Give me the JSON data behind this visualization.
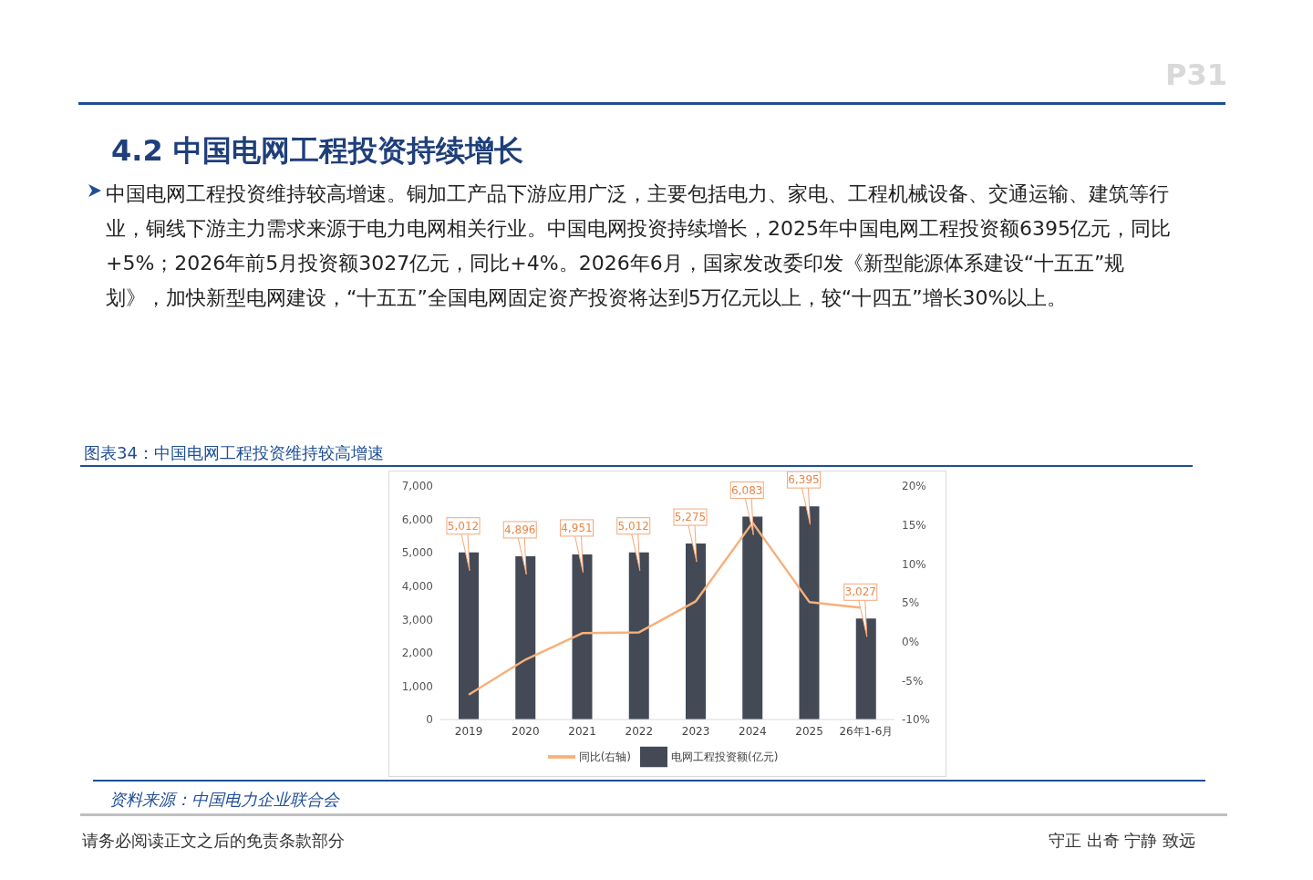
{
  "chart_data": {
    "type": "bar",
    "title": "4.2 中国电网工程投资持续增长",
    "subtitle": "中国电网工程投资维持较高增速。铜加工产品下游应用广泛，主要包括电力、家电、工程机械设备、交通运输、建筑等行业，铜线下游主力需求来源于电力电网相关行业。中国电网投资持续增长，2025年中国电网工程投资额6395亿元，同比+5%；2026年前5月投资额3027亿元，同比+4%。2026年6月，国家发改委印发《新型能源体系建设“十五五”规划》，加快新型电网建设，“十五五”全国电网固定资产投资将达到5万亿元以上，较“十四五”增长30%以上。",
    "annotations": [
      "P31",
      "图表34：中国电网工程投资维持较高增速",
      "资料来源：中国电力企业联合会",
      "请务必阅读正文之后的免责条款部分",
      "守正 出奇 宁静 致远"
    ],
    "categories": [
      "2019",
      "2020",
      "2021",
      "2022",
      "2023",
      "2024",
      "2025",
      "26年1-6月"
    ],
    "series": [
      {
        "name": "电网工程投资额(亿元)",
        "color": "#434955",
        "values": [
          5012,
          4896,
          4951,
          5012,
          5275,
          6083,
          6395,
          3027
        ],
        "value_labels": [
          "5,012",
          "4,896",
          "4,951",
          "5,012",
          "5,275",
          "6,083",
          "6,395",
          "3,027"
        ]
      },
      {
        "name": "同比(右轴)",
        "type": "line",
        "axis": "y2",
        "color": "#f7b07a",
        "values": [
          -6.8,
          -2.3,
          1.1,
          1.2,
          5.2,
          15.3,
          5.1,
          4.3
        ]
      }
    ],
    "ylim": [
      0,
      7000
    ],
    "yticks": [
      0,
      {
        "value": 1000,
        "label": "1,000"
      },
      {
        "value": 2000,
        "label": "2,000"
      },
      {
        "value": 3000,
        "label": "3,000"
      },
      {
        "value": 4000,
        "label": "4,000"
      },
      {
        "value": 5000,
        "label": "5,000"
      },
      {
        "value": 6000,
        "label": "6,000"
      },
      {
        "value": 7000,
        "label": "7,000"
      }
    ],
    "y2lim": [
      -10,
      20
    ],
    "y2ticks": [
      {
        "value": -10,
        "label": "-10%"
      },
      {
        "value": -5,
        "label": "-5%"
      },
      {
        "value": 0,
        "label": "0%"
      },
      {
        "value": 5,
        "label": "5%"
      },
      {
        "value": 10,
        "label": "10%"
      },
      {
        "value": 15,
        "label": "15%"
      },
      {
        "value": 20,
        "label": "20%"
      }
    ],
    "grid": false,
    "legend": "bottom",
    "marker": "none",
    "line_style": "solid"
  }
}
